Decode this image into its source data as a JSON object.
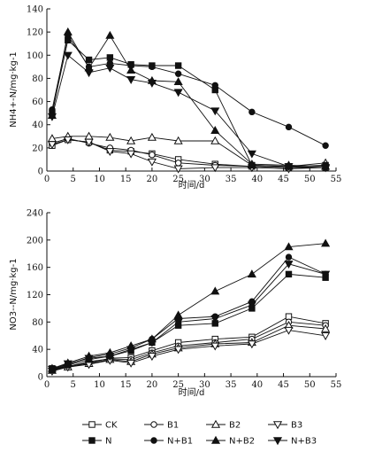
{
  "chart_data": [
    {
      "type": "line",
      "title": "",
      "xlabel": "时间/d",
      "ylabel": "NH4+-N/mg·kg-1",
      "xlim": [
        0,
        55
      ],
      "ylim": [
        0,
        140
      ],
      "xticks": [
        0,
        5,
        10,
        15,
        20,
        25,
        30,
        35,
        40,
        45,
        50,
        55
      ],
      "yticks": [
        0,
        20,
        40,
        60,
        80,
        100,
        120,
        140
      ],
      "x": [
        1,
        4,
        8,
        12,
        16,
        20,
        25,
        32,
        39,
        46,
        53
      ],
      "series": [
        {
          "name": "CK",
          "values": [
            22,
            27,
            25,
            18,
            17,
            15,
            10,
            6,
            4,
            3,
            3
          ]
        },
        {
          "name": "B1",
          "values": [
            24,
            28,
            24,
            20,
            18,
            14,
            7,
            5,
            4,
            3,
            3
          ]
        },
        {
          "name": "B2",
          "values": [
            28,
            30,
            30,
            29,
            26,
            29,
            26,
            26,
            5,
            4,
            7
          ]
        },
        {
          "name": "B3",
          "values": [
            23,
            27,
            25,
            17,
            15,
            8,
            2,
            3,
            3,
            2,
            3
          ]
        },
        {
          "name": "N",
          "values": [
            50,
            113,
            96,
            98,
            92,
            91,
            91,
            70,
            5,
            4,
            5
          ]
        },
        {
          "name": "N+B1",
          "values": [
            53,
            117,
            90,
            93,
            91,
            90,
            84,
            74,
            51,
            38,
            22
          ]
        },
        {
          "name": "N+B2",
          "values": [
            48,
            120,
            89,
            117,
            87,
            78,
            77,
            35,
            6,
            5,
            4
          ]
        },
        {
          "name": "N+B3",
          "values": [
            47,
            100,
            85,
            89,
            79,
            76,
            68,
            52,
            15,
            4,
            3
          ]
        }
      ]
    },
    {
      "type": "line",
      "title": "",
      "xlabel": "时间/d",
      "ylabel": "NO3--N/mg·kg-1",
      "xlim": [
        0,
        55
      ],
      "ylim": [
        0,
        240
      ],
      "xticks": [
        0,
        5,
        10,
        15,
        20,
        25,
        30,
        35,
        40,
        45,
        50,
        55
      ],
      "yticks": [
        0,
        40,
        80,
        120,
        160,
        200,
        240
      ],
      "x": [
        1,
        4,
        8,
        12,
        16,
        20,
        25,
        32,
        39,
        46,
        53
      ],
      "series": [
        {
          "name": "CK",
          "values": [
            12,
            15,
            20,
            27,
            28,
            38,
            50,
            55,
            58,
            88,
            78
          ]
        },
        {
          "name": "B1",
          "values": [
            10,
            15,
            22,
            26,
            25,
            35,
            45,
            50,
            55,
            80,
            75
          ]
        },
        {
          "name": "B2",
          "values": [
            9,
            14,
            19,
            25,
            22,
            33,
            42,
            48,
            50,
            75,
            70
          ]
        },
        {
          "name": "B3",
          "values": [
            8,
            14,
            18,
            24,
            20,
            30,
            40,
            45,
            48,
            68,
            60
          ]
        },
        {
          "name": "N",
          "values": [
            10,
            17,
            25,
            30,
            38,
            50,
            75,
            78,
            100,
            150,
            145
          ]
        },
        {
          "name": "N+B1",
          "values": [
            11,
            18,
            28,
            33,
            42,
            55,
            85,
            88,
            110,
            175,
            150
          ]
        },
        {
          "name": "N+B2",
          "values": [
            12,
            20,
            30,
            35,
            45,
            55,
            90,
            125,
            150,
            190,
            195
          ]
        },
        {
          "name": "N+B3",
          "values": [
            11,
            19,
            27,
            30,
            40,
            50,
            80,
            85,
            105,
            165,
            150
          ]
        }
      ]
    }
  ],
  "legend": [
    {
      "label": "CK",
      "marker": "square",
      "filled": false
    },
    {
      "label": "B1",
      "marker": "circle",
      "filled": false
    },
    {
      "label": "B2",
      "marker": "triangle-up",
      "filled": false
    },
    {
      "label": "B3",
      "marker": "triangle-down",
      "filled": false
    },
    {
      "label": "N",
      "marker": "square",
      "filled": true
    },
    {
      "label": "N+B1",
      "marker": "circle",
      "filled": true
    },
    {
      "label": "N+B2",
      "marker": "triangle-up",
      "filled": true
    },
    {
      "label": "N+B3",
      "marker": "triangle-down",
      "filled": true
    }
  ]
}
